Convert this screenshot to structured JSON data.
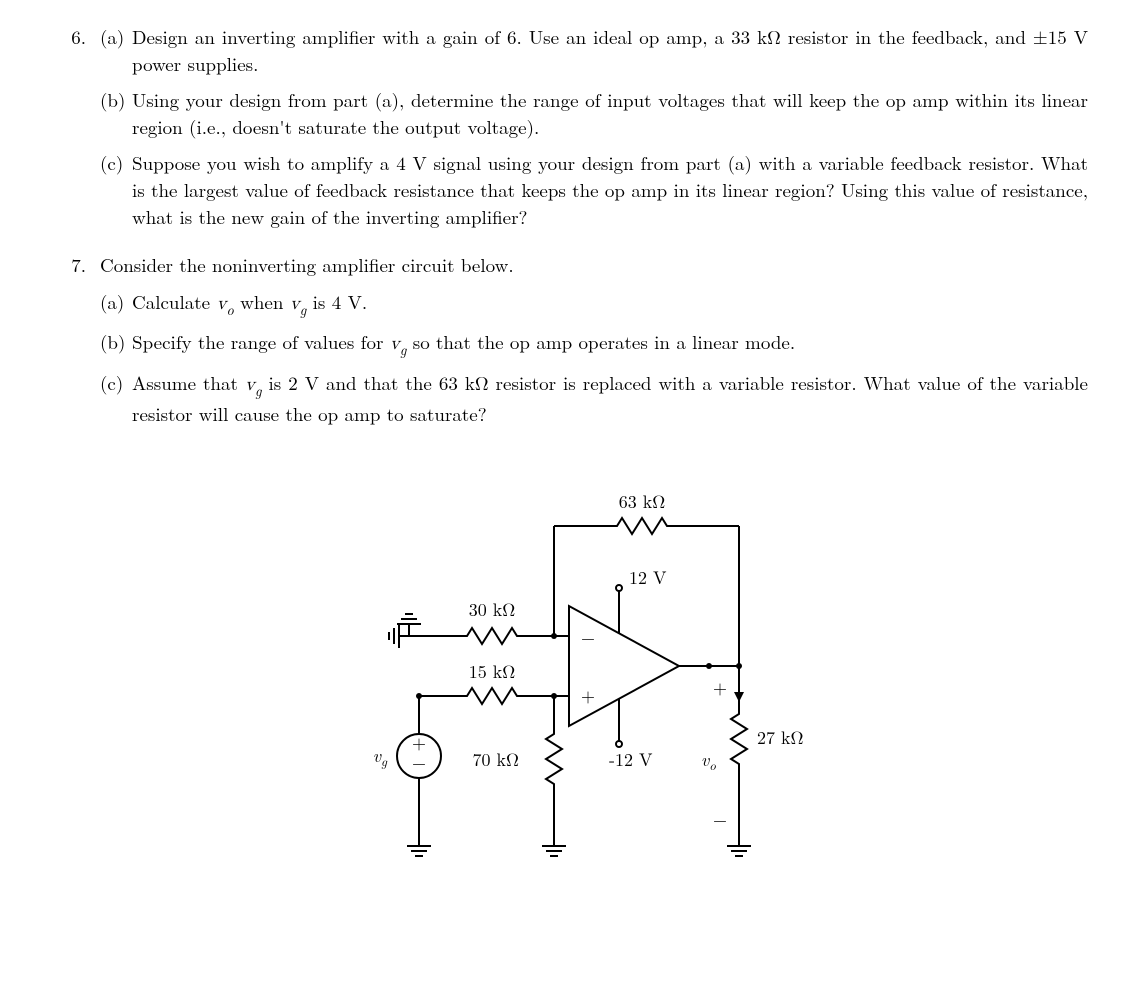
{
  "problems": [
    {
      "number": "6.",
      "intro": "",
      "parts": [
        {
          "label": "(a)",
          "text": "Design an inverting amplifier with a gain of 6. Use an ideal op amp, a 33 kΩ resistor in the feedback, and ±15 V power supplies."
        },
        {
          "label": "(b)",
          "text": "Using your design from part (a), determine the range of input voltages that will keep the op amp within its linear region (i.e., doesn't saturate the output voltage)."
        },
        {
          "label": "(c)",
          "text": "Suppose you wish to amplify a 4 V signal using your design from part (a) with a variable feedback resistor. What is the largest value of feedback resistance that keeps the op amp in its linear region? Using this value of resistance, what is the new gain of the inverting amplifier?"
        }
      ]
    },
    {
      "number": "7.",
      "intro": "Consider the noninverting amplifier circuit below.",
      "parts_html": [
        {
          "label": "(a)",
          "html": "Calculate <span class='math-it'>v</span><span class='sub'>o</span> when <span class='math-it'>v</span><span class='sub'>g</span> is 4 V."
        },
        {
          "label": "(b)",
          "html": "Specify the range of values for <span class='math-it'>v</span><span class='sub'>g</span> so that the op amp operates in a linear mode."
        },
        {
          "label": "(c)",
          "html": "Assume that <span class='math-it'>v</span><span class='sub'>g</span> is 2 V and that the 63 kΩ resistor is replaced with a variable resistor. What value of the variable resistor will cause the op amp to saturate?"
        }
      ]
    }
  ],
  "circuit": {
    "type": "schematic",
    "components": {
      "feedback_resistor": "63 kΩ",
      "r_minus": "30 kΩ",
      "r_plus_series": "15 kΩ",
      "r_plus_shunt": "70 kΩ",
      "r_load": "27 kΩ",
      "v_pos_supply": "12 V",
      "v_neg_supply": "-12 V",
      "v_source": "v_g",
      "v_output": "v_o"
    },
    "stroke_color": "#000000",
    "stroke_width": 2,
    "background": "#ffffff"
  }
}
